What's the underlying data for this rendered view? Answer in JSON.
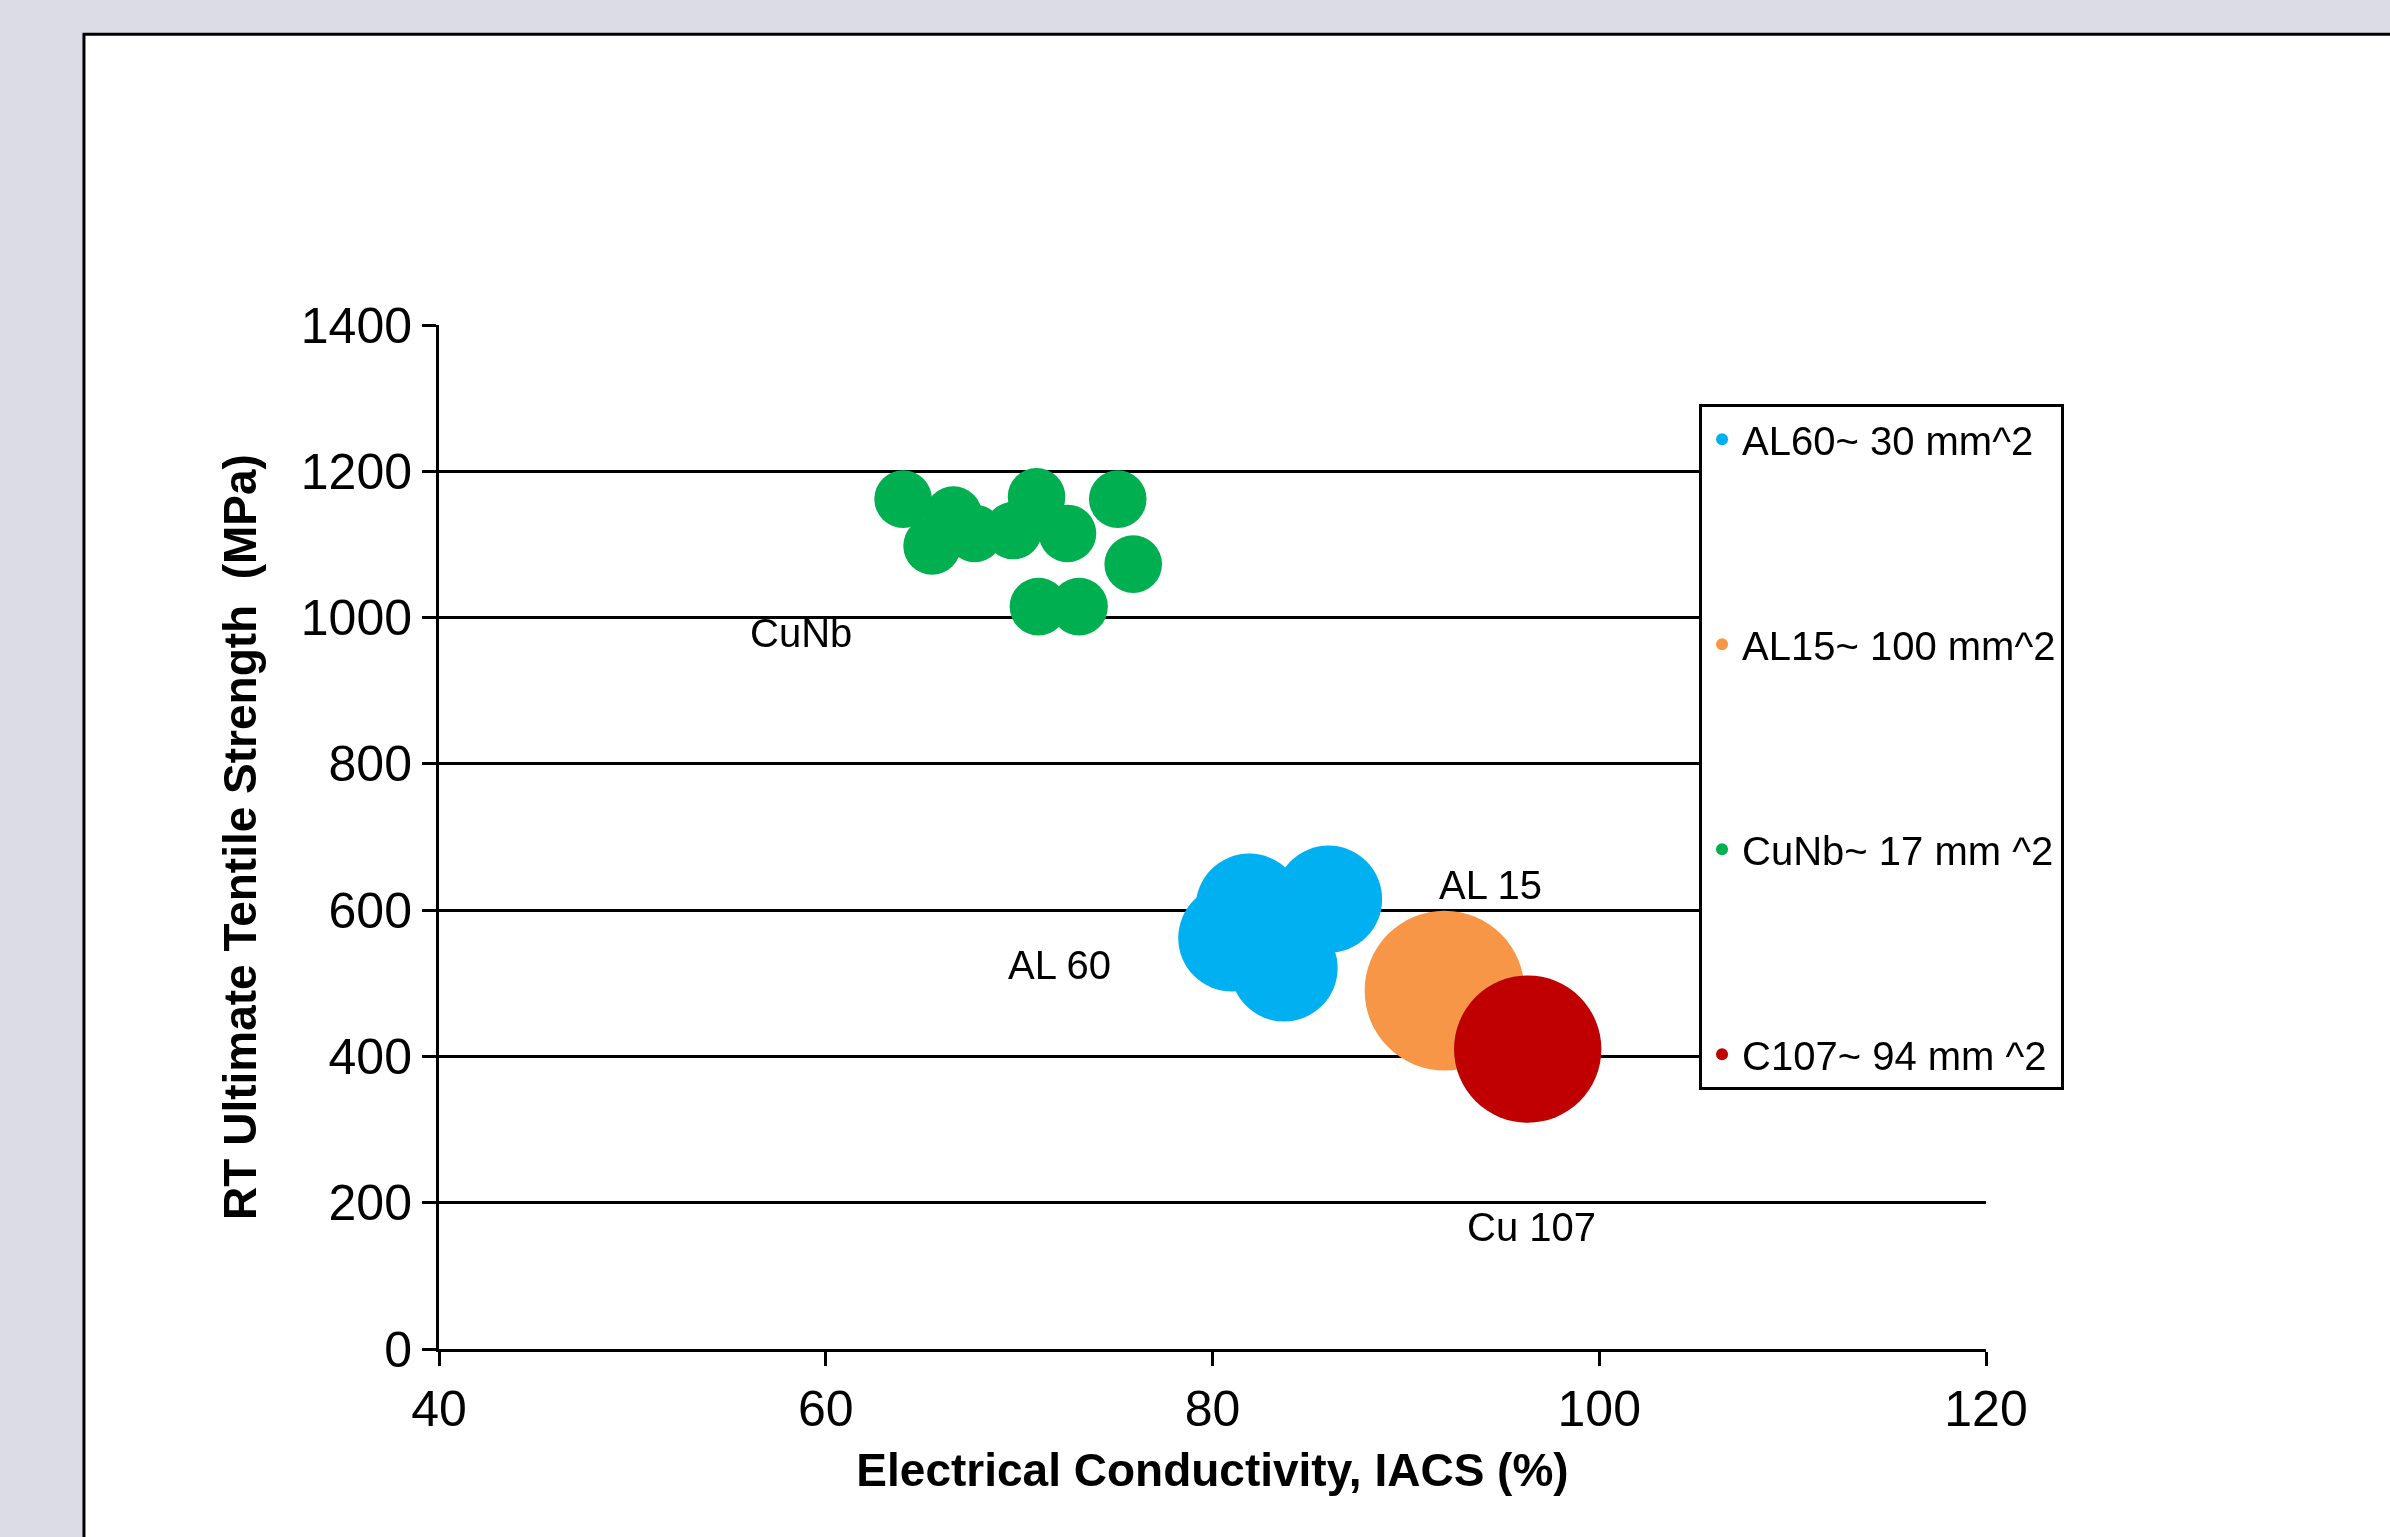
{
  "chart_data": {
    "type": "bubble",
    "xlabel": "Electrical Conductivity, IACS (%)",
    "ylabel": "RT Ultimate Tentile Strength  (MPa)",
    "xlim": [
      40,
      120
    ],
    "xticks": [
      40,
      60,
      80,
      100,
      120
    ],
    "ylim": [
      0,
      1400
    ],
    "yticks": [
      0,
      200,
      400,
      600,
      800,
      1000,
      1200,
      1400
    ],
    "grid": "y",
    "legend": "right",
    "series": [
      {
        "name": "AL60~ 30 mm^2",
        "color": "#00b0f0",
        "x": [
          81.9,
          86.0,
          81.0,
          83.7
        ],
        "values": [
          604,
          615,
          562,
          521
        ],
        "sizes": [
          0.45,
          0.45,
          0.45,
          0.45
        ]
      },
      {
        "name": "AL15~ 100 mm^2",
        "color": "#f79646",
        "x": [
          92.0
        ],
        "values": [
          490
        ],
        "sizes": [
          1
        ]
      },
      {
        "name": "CuNb~ 17 mm ^2",
        "color": "#00b050",
        "x": [
          64.0,
          66.6,
          65.5,
          67.7,
          69.7,
          70.9,
          72.5,
          75.1,
          75.9,
          71.0,
          73.1
        ],
        "values": [
          1162,
          1140,
          1098,
          1115,
          1119,
          1165,
          1115,
          1162,
          1073,
          1015,
          1015
        ],
        "sizes": [
          0.13,
          0.13,
          0.13,
          0.13,
          0.13,
          0.13,
          0.13,
          0.13,
          0.13,
          0.13,
          0.13
        ]
      },
      {
        "name": "C107~ 94 mm ^2",
        "color": "#c00000",
        "x": [
          96.3
        ],
        "values": [
          410
        ],
        "sizes": [
          0.85
        ]
      }
    ],
    "annotations": [
      "CuNb",
      "AL 60",
      "AL 15",
      "Cu 107"
    ]
  }
}
